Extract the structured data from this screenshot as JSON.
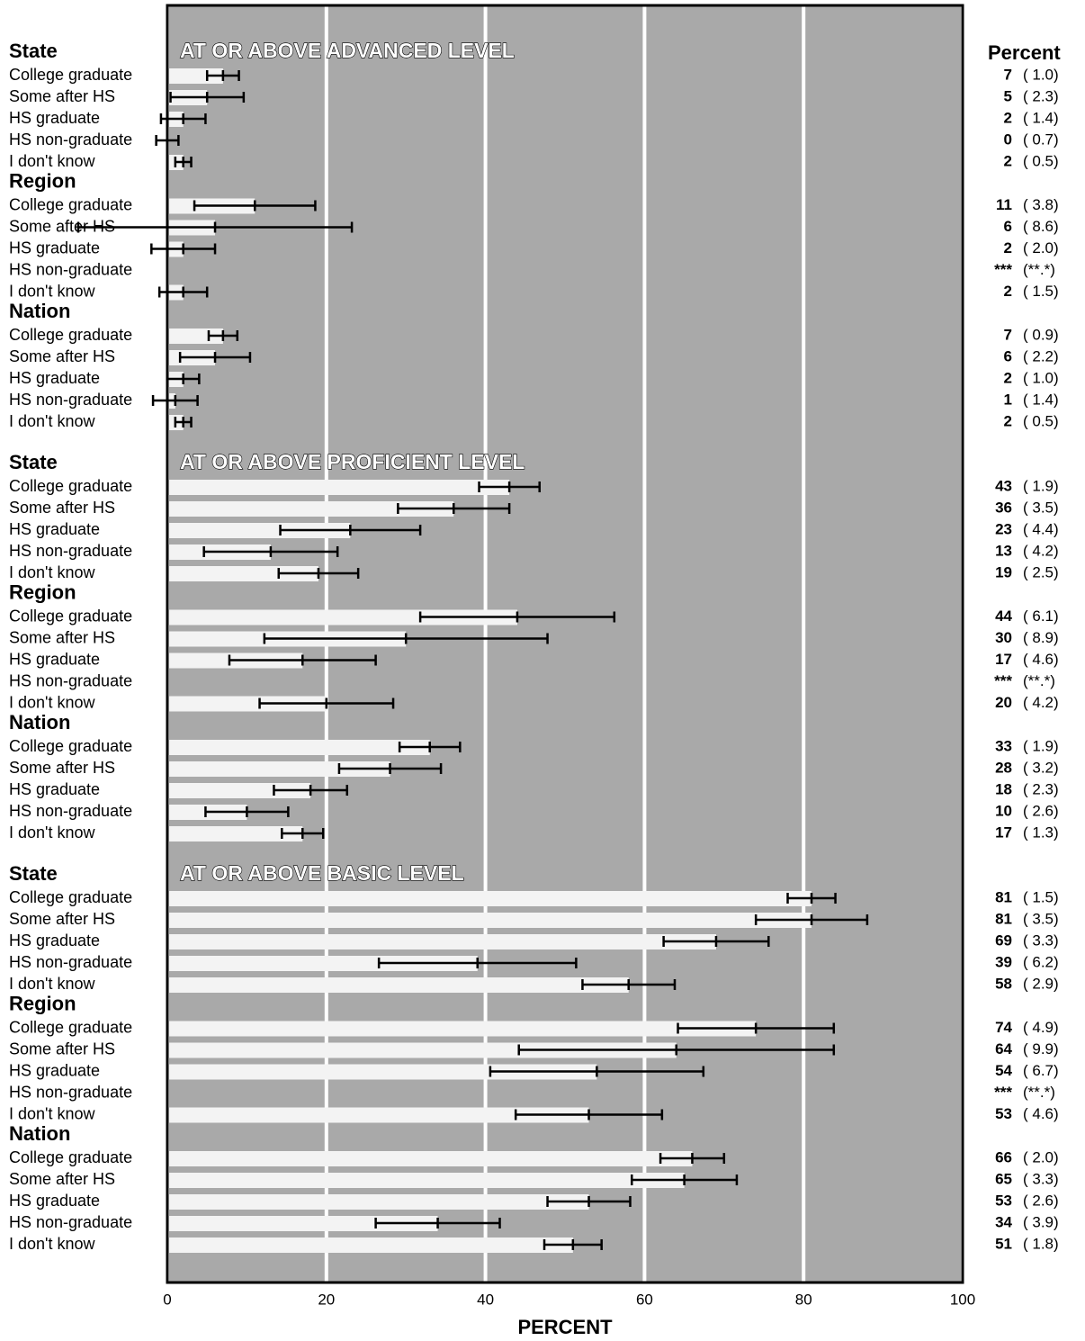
{
  "chart_data": {
    "type": "bar",
    "orientation": "horizontal",
    "value_header": "Percent",
    "xlabel": "PERCENT",
    "xlim": [
      0,
      100
    ],
    "xticks": [
      0,
      20,
      40,
      60,
      80,
      100
    ],
    "grid": true,
    "background_color": "#a9a9a9",
    "bar_color": "#f3f3f3",
    "error_color": "#000000",
    "panels": [
      {
        "title": "AT OR ABOVE ADVANCED LEVEL",
        "groups": [
          {
            "name": "State",
            "categories": [
              "College graduate",
              "Some after HS",
              "HS graduate",
              "HS non-graduate",
              "I don't know"
            ],
            "values": [
              7,
              5,
              2,
              0,
              2
            ],
            "errors": [
              1.0,
              2.3,
              1.4,
              0.7,
              0.5
            ],
            "value_labels": [
              "7",
              "5",
              "2",
              "0",
              "2"
            ],
            "error_labels": [
              "( 1.0)",
              "( 2.3)",
              "( 1.4)",
              "( 0.7)",
              "( 0.5)"
            ]
          },
          {
            "name": "Region",
            "categories": [
              "College graduate",
              "Some after HS",
              "HS graduate",
              "HS non-graduate",
              "I don't know"
            ],
            "values": [
              11,
              6,
              2,
              null,
              2
            ],
            "errors": [
              3.8,
              8.6,
              2.0,
              null,
              1.5
            ],
            "value_labels": [
              "11",
              "6",
              "2",
              "***",
              "2"
            ],
            "error_labels": [
              "( 3.8)",
              "( 8.6)",
              "( 2.0)",
              "(**.*)",
              "( 1.5)"
            ]
          },
          {
            "name": "Nation",
            "categories": [
              "College graduate",
              "Some after HS",
              "HS graduate",
              "HS non-graduate",
              "I don't know"
            ],
            "values": [
              7,
              6,
              2,
              1,
              2
            ],
            "errors": [
              0.9,
              2.2,
              1.0,
              1.4,
              0.5
            ],
            "value_labels": [
              "7",
              "6",
              "2",
              "1",
              "2"
            ],
            "error_labels": [
              "( 0.9)",
              "( 2.2)",
              "( 1.0)",
              "( 1.4)",
              "( 0.5)"
            ]
          }
        ]
      },
      {
        "title": "AT OR ABOVE PROFICIENT LEVEL",
        "groups": [
          {
            "name": "State",
            "categories": [
              "College graduate",
              "Some after HS",
              "HS graduate",
              "HS non-graduate",
              "I don't know"
            ],
            "values": [
              43,
              36,
              23,
              13,
              19
            ],
            "errors": [
              1.9,
              3.5,
              4.4,
              4.2,
              2.5
            ],
            "value_labels": [
              "43",
              "36",
              "23",
              "13",
              "19"
            ],
            "error_labels": [
              "( 1.9)",
              "( 3.5)",
              "( 4.4)",
              "( 4.2)",
              "( 2.5)"
            ]
          },
          {
            "name": "Region",
            "categories": [
              "College graduate",
              "Some after HS",
              "HS graduate",
              "HS non-graduate",
              "I don't know"
            ],
            "values": [
              44,
              30,
              17,
              null,
              20
            ],
            "errors": [
              6.1,
              8.9,
              4.6,
              null,
              4.2
            ],
            "value_labels": [
              "44",
              "30",
              "17",
              "***",
              "20"
            ],
            "error_labels": [
              "( 6.1)",
              "( 8.9)",
              "( 4.6)",
              "(**.*)",
              "( 4.2)"
            ]
          },
          {
            "name": "Nation",
            "categories": [
              "College graduate",
              "Some after HS",
              "HS graduate",
              "HS non-graduate",
              "I don't know"
            ],
            "values": [
              33,
              28,
              18,
              10,
              17
            ],
            "errors": [
              1.9,
              3.2,
              2.3,
              2.6,
              1.3
            ],
            "value_labels": [
              "33",
              "28",
              "18",
              "10",
              "17"
            ],
            "error_labels": [
              "( 1.9)",
              "( 3.2)",
              "( 2.3)",
              "( 2.6)",
              "( 1.3)"
            ]
          }
        ]
      },
      {
        "title": "AT OR ABOVE BASIC LEVEL",
        "groups": [
          {
            "name": "State",
            "categories": [
              "College graduate",
              "Some after HS",
              "HS graduate",
              "HS non-graduate",
              "I don't know"
            ],
            "values": [
              81,
              81,
              69,
              39,
              58
            ],
            "errors": [
              1.5,
              3.5,
              3.3,
              6.2,
              2.9
            ],
            "value_labels": [
              "81",
              "81",
              "69",
              "39",
              "58"
            ],
            "error_labels": [
              "( 1.5)",
              "( 3.5)",
              "( 3.3)",
              "( 6.2)",
              "( 2.9)"
            ]
          },
          {
            "name": "Region",
            "categories": [
              "College graduate",
              "Some after HS",
              "HS graduate",
              "HS non-graduate",
              "I don't know"
            ],
            "values": [
              74,
              64,
              54,
              null,
              53
            ],
            "errors": [
              4.9,
              9.9,
              6.7,
              null,
              4.6
            ],
            "value_labels": [
              "74",
              "64",
              "54",
              "***",
              "53"
            ],
            "error_labels": [
              "( 4.9)",
              "( 9.9)",
              "( 6.7)",
              "(**.*)",
              "( 4.6)"
            ]
          },
          {
            "name": "Nation",
            "categories": [
              "College graduate",
              "Some after HS",
              "HS graduate",
              "HS non-graduate",
              "I don't know"
            ],
            "values": [
              66,
              65,
              53,
              34,
              51
            ],
            "errors": [
              2.0,
              3.3,
              2.6,
              3.9,
              1.8
            ],
            "value_labels": [
              "66",
              "65",
              "53",
              "34",
              "51"
            ],
            "error_labels": [
              "( 2.0)",
              "( 3.3)",
              "( 2.6)",
              "( 3.9)",
              "( 1.8)"
            ]
          }
        ]
      }
    ]
  }
}
